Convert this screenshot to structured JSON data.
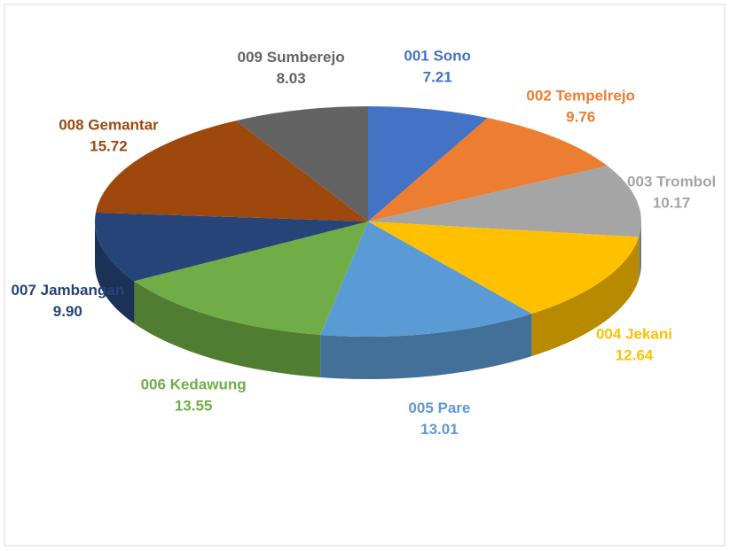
{
  "chart_data": {
    "type": "pie3d",
    "categories": [
      "001 Sono",
      "002 Tempelrejo",
      "003 Trombol",
      "004 Jekani",
      "005 Pare",
      "006 Kedawung",
      "007 Jambangan",
      "008 Gemantar",
      "009 Sumberejo"
    ],
    "values": [
      7.21,
      9.76,
      10.17,
      12.64,
      13.01,
      13.55,
      9.9,
      15.72,
      8.03
    ],
    "value_labels": [
      "7.21",
      "9.76",
      "10.17",
      "12.64",
      "13.01",
      "13.55",
      "9.90",
      "15.72",
      "8.03"
    ],
    "colors": [
      "#4472c4",
      "#ed7d31",
      "#a5a5a5",
      "#ffc000",
      "#5b9bd5",
      "#70ad47",
      "#264478",
      "#9e480e",
      "#636363"
    ]
  }
}
